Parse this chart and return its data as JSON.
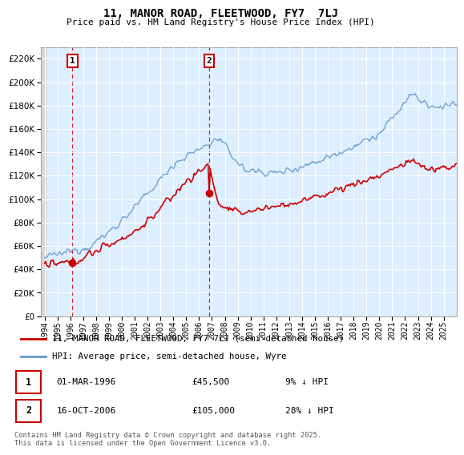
{
  "title": "11, MANOR ROAD, FLEETWOOD, FY7  7LJ",
  "subtitle": "Price paid vs. HM Land Registry's House Price Index (HPI)",
  "property_label": "11, MANOR ROAD, FLEETWOOD, FY7 7LJ (semi-detached house)",
  "hpi_label": "HPI: Average price, semi-detached house, Wyre",
  "transaction1": {
    "num": "1",
    "date": "01-MAR-1996",
    "price": 45500,
    "pct": "9% ↓ HPI"
  },
  "transaction2": {
    "num": "2",
    "date": "16-OCT-2006",
    "price": 105000,
    "pct": "28% ↓ HPI"
  },
  "footnote": "Contains HM Land Registry data © Crown copyright and database right 2025.\nThis data is licensed under the Open Government Licence v3.0.",
  "property_color": "#cc0000",
  "hpi_color": "#6699cc",
  "background_plot": "#ddeeff",
  "ylim": [
    0,
    230000
  ],
  "yticks": [
    0,
    20000,
    40000,
    60000,
    80000,
    100000,
    120000,
    140000,
    160000,
    180000,
    200000,
    220000
  ],
  "year_start": 1994,
  "year_end": 2026
}
